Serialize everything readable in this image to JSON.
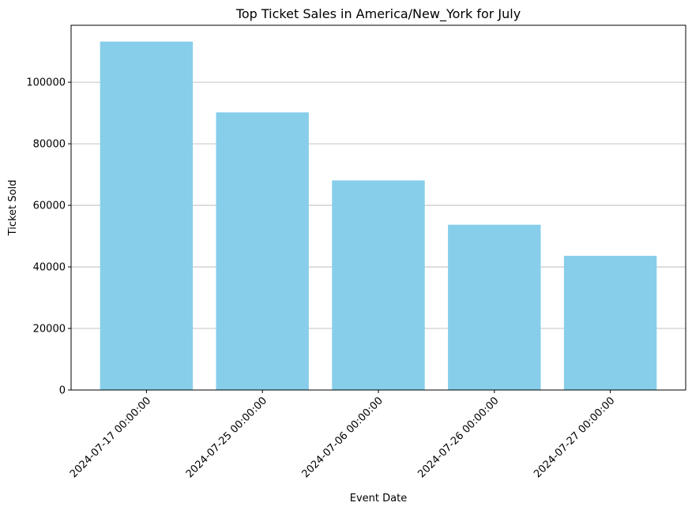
{
  "chart_data": {
    "type": "bar",
    "title": "Top Ticket Sales in America/New_York for July",
    "xlabel": "Event Date",
    "ylabel": "Ticket Sold",
    "categories": [
      "2024-07-17 00:00:00",
      "2024-07-25 00:00:00",
      "2024-07-06 00:00:00",
      "2024-07-26 00:00:00",
      "2024-07-27 00:00:00"
    ],
    "values": [
      113200,
      90200,
      68100,
      53700,
      43600
    ],
    "yticks": [
      0,
      20000,
      40000,
      60000,
      80000,
      100000
    ],
    "ylim": [
      0,
      118500
    ],
    "grid": "y-major",
    "legend": "none",
    "bar_color": "#87ceeb",
    "grid_color": "#b0b0b0",
    "axis_color": "#000000"
  }
}
